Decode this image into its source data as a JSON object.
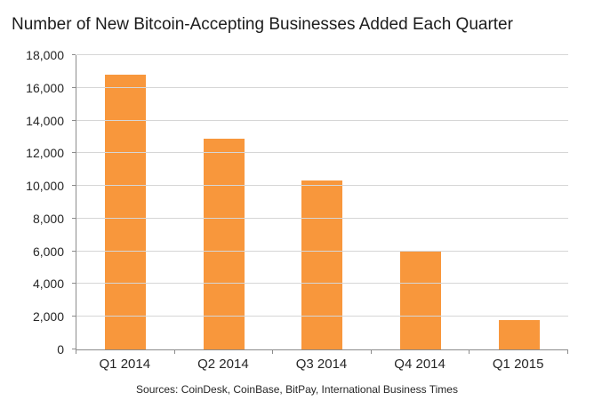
{
  "chart_data": {
    "type": "bar",
    "title": "Number of New Bitcoin-Accepting Businesses Added Each Quarter",
    "categories": [
      "Q1 2014",
      "Q2 2014",
      "Q3 2014",
      "Q4 2014",
      "Q1 2015"
    ],
    "values": [
      16800,
      12900,
      10350,
      6000,
      1800
    ],
    "xlabel": "",
    "ylabel": "",
    "ylim": [
      0,
      18000
    ],
    "ytick_step": 2000,
    "ytick_labels": [
      "0",
      "2,000",
      "4,000",
      "6,000",
      "8,000",
      "10,000",
      "12,000",
      "14,000",
      "16,000",
      "18,000"
    ],
    "grid": true,
    "legend_position": "none",
    "source": "Sources: CoinDesk, CoinBase, BitPay, International Business Times"
  },
  "colors": {
    "bar": "#F8973C",
    "gridline": "#D6D6D6",
    "axis": "#8C8C8C",
    "text": "#262626",
    "title_text": "#1C1C1C",
    "background": "#FFFFFF"
  }
}
